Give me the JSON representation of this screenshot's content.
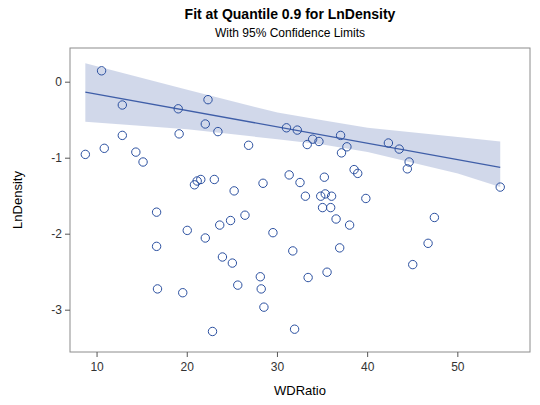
{
  "chart_data": {
    "type": "scatter",
    "title": "Fit at Quantile 0.9 for LnDensity",
    "subtitle": "With 95% Confidence Limits",
    "xlabel": "WDRatio",
    "ylabel": "LnDensity",
    "xlim": [
      7,
      58
    ],
    "ylim": [
      -3.55,
      0.45
    ],
    "xticks": [
      10,
      20,
      30,
      40,
      50
    ],
    "yticks": [
      0,
      -1,
      -2,
      -3
    ],
    "grid": false,
    "series": [
      {
        "type": "band",
        "color": "#c9d1e6",
        "x": [
          8.7,
          20,
          30,
          35,
          40,
          50,
          54.7
        ],
        "upper": [
          0.25,
          -0.1,
          -0.4,
          -0.5,
          -0.6,
          -0.72,
          -0.78
        ],
        "lower": [
          -0.52,
          -0.62,
          -0.75,
          -0.82,
          -0.92,
          -1.2,
          -1.38
        ]
      },
      {
        "type": "line",
        "color": "#3f5ea8",
        "line_style": "solid",
        "x": [
          8.7,
          54.7
        ],
        "values": [
          -0.13,
          -1.12
        ]
      },
      {
        "type": "scatter",
        "color": "#2b50a0",
        "marker": "circle",
        "x": [
          8.7,
          10.5,
          10.8,
          12.8,
          12.8,
          14.3,
          15.1,
          16.6,
          16.6,
          16.7,
          19.0,
          19.1,
          19.5,
          20.0,
          20.8,
          21.1,
          21.5,
          22.0,
          22.0,
          22.3,
          22.8,
          23.0,
          23.4,
          23.6,
          23.9,
          24.8,
          25.0,
          25.2,
          25.6,
          26.4,
          26.8,
          28.1,
          28.2,
          28.4,
          28.5,
          29.5,
          31.0,
          31.3,
          31.7,
          31.9,
          32.2,
          32.5,
          33.1,
          33.3,
          33.4,
          33.9,
          34.6,
          34.8,
          35.0,
          35.2,
          35.3,
          35.5,
          35.9,
          36.0,
          36.5,
          36.9,
          37.0,
          37.1,
          37.7,
          38.0,
          38.5,
          38.9,
          39.8,
          42.3,
          43.5,
          44.4,
          44.6,
          45.0,
          46.7,
          47.4,
          54.7
        ],
        "values": [
          -0.95,
          0.15,
          -0.87,
          -0.3,
          -0.7,
          -0.92,
          -1.05,
          -1.71,
          -2.16,
          -2.72,
          -0.35,
          -0.68,
          -2.77,
          -1.95,
          -1.35,
          -1.3,
          -1.28,
          -0.55,
          -2.05,
          -0.23,
          -3.28,
          -1.28,
          -0.65,
          -1.88,
          -2.3,
          -1.82,
          -2.38,
          -1.43,
          -2.67,
          -1.75,
          -0.83,
          -2.56,
          -2.72,
          -1.33,
          -2.96,
          -1.98,
          -0.6,
          -1.22,
          -2.22,
          -3.25,
          -0.63,
          -1.32,
          -1.5,
          -0.82,
          -2.57,
          -0.75,
          -0.78,
          -1.5,
          -1.65,
          -1.25,
          -1.47,
          -2.5,
          -1.65,
          -1.5,
          -1.8,
          -2.18,
          -0.7,
          -0.93,
          -0.85,
          -1.88,
          -1.15,
          -1.2,
          -1.53,
          -0.8,
          -0.88,
          -1.14,
          -1.05,
          -2.4,
          -2.12,
          -1.78,
          -1.38
        ]
      }
    ]
  }
}
